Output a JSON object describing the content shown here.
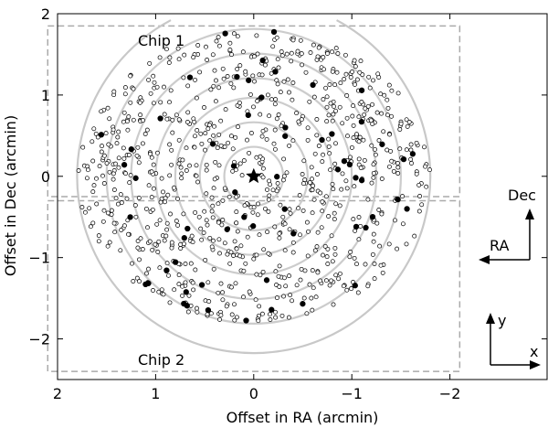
{
  "chart_data": {
    "type": "scatter",
    "xlabel": "Offset in RA (arcmin)",
    "ylabel": "Offset in Dec (arcmin)",
    "xlim": [
      2.0,
      -3.0
    ],
    "ylim": [
      -2.5,
      2.0
    ],
    "x_ticks": [
      2,
      1,
      0,
      -1,
      -2
    ],
    "y_ticks": [
      -2,
      -1,
      0,
      1,
      2
    ],
    "x_tick_labels": [
      "2",
      "1",
      "0",
      "−1",
      "−2"
    ],
    "y_tick_labels": [
      "−2",
      "−1",
      "0",
      "1",
      "2"
    ],
    "grid": false,
    "chips": [
      {
        "label": "Chip 1",
        "x_range": [
          2.1,
          -2.1
        ],
        "y_range": [
          -0.25,
          1.85
        ]
      },
      {
        "label": "Chip 2",
        "x_range": [
          2.1,
          -2.1
        ],
        "y_range": [
          -2.4,
          -0.3
        ]
      }
    ],
    "center_marker": {
      "x": 0,
      "y": 0,
      "symbol": "star"
    },
    "rings": [
      {
        "radius": 0.3
      },
      {
        "radius": 0.55
      },
      {
        "radius": 0.8
      },
      {
        "radius": 1.0
      },
      {
        "radius": 1.25
      },
      {
        "radius": 1.5
      },
      {
        "radius": 1.8,
        "gap": true
      }
    ],
    "compass": {
      "north_label": "Dec",
      "east_label": "RA"
    },
    "detector_axes": {
      "y_label": "y",
      "x_label": "x"
    },
    "series_stars": {
      "marker": "open-circle",
      "count": 900,
      "max_radius": 1.8
    },
    "series_members": {
      "marker": "filled-circle",
      "count": 60,
      "max_radius": 1.8
    }
  }
}
